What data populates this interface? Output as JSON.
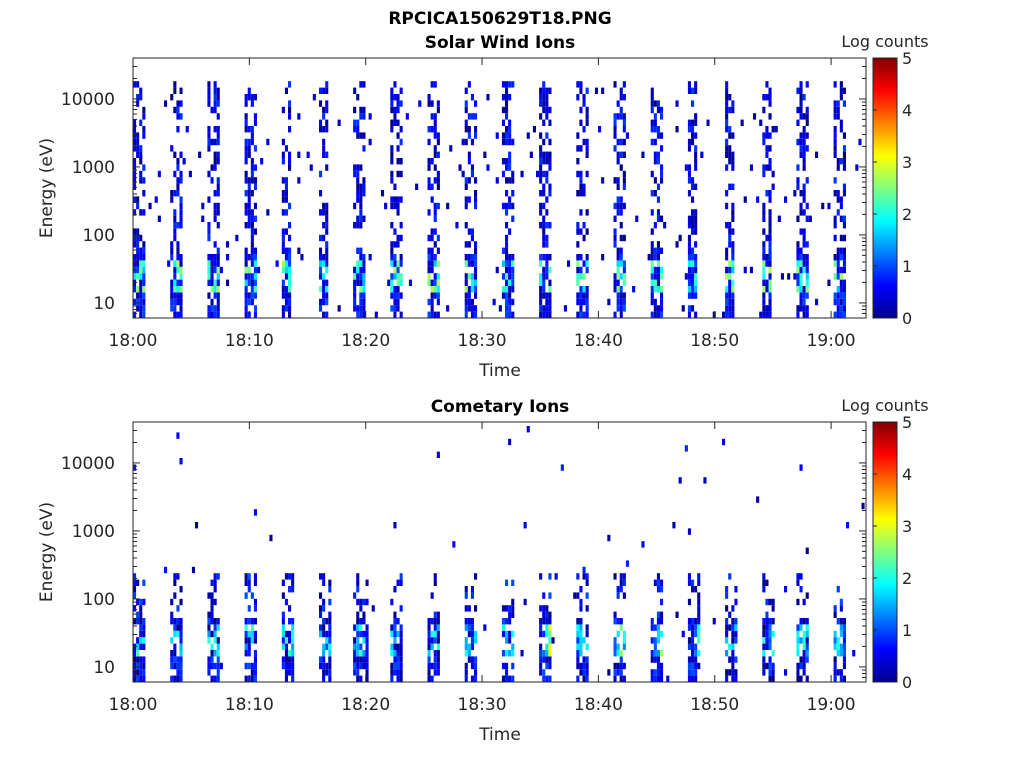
{
  "figure": {
    "title": "RPCICA150629T18.PNG"
  },
  "colors": {
    "axis": "#262626",
    "colormap": "jet"
  },
  "chart_data": [
    {
      "type": "heatmap",
      "title": "Solar Wind Ions",
      "xlabel": "Time",
      "ylabel": "Energy (eV)",
      "x_tick_labels": [
        "18:00",
        "18:10",
        "18:20",
        "18:30",
        "18:40",
        "18:50",
        "19:00"
      ],
      "xlim": [
        "18:00",
        "19:03"
      ],
      "y_scale": "log",
      "y_tick_labels": [
        "10",
        "100",
        "1000",
        "10000"
      ],
      "ylim": [
        6,
        40000
      ],
      "colorbar": {
        "label": "Log counts",
        "range": [
          0,
          5
        ],
        "tick_labels": [
          "0",
          "1",
          "2",
          "3",
          "4",
          "5"
        ]
      },
      "grid": false,
      "pattern": "Energy sweeps roughly every 3.2 minutes; scattered counts (log 0-1) from 10 eV to ~20000 eV, enhancements up to log ~2-3 near 20-30 eV"
    },
    {
      "type": "heatmap",
      "title": "Cometary Ions",
      "xlabel": "Time",
      "ylabel": "Energy (eV)",
      "x_tick_labels": [
        "18:00",
        "18:10",
        "18:20",
        "18:30",
        "18:40",
        "18:50",
        "19:00"
      ],
      "xlim": [
        "18:00",
        "19:03"
      ],
      "y_scale": "log",
      "y_tick_labels": [
        "10",
        "100",
        "1000",
        "10000"
      ],
      "ylim": [
        6,
        40000
      ],
      "colorbar": {
        "label": "Log counts",
        "range": [
          0,
          5
        ],
        "tick_labels": [
          "0",
          "1",
          "2",
          "3",
          "4",
          "5"
        ]
      },
      "grid": false,
      "pattern": "Counts concentrated below ~200 eV; peaks log ~3-4 near 20-40 eV around 18:24, 18:30, 18:36, 18:55; sparse points up to ~20000 eV"
    }
  ]
}
